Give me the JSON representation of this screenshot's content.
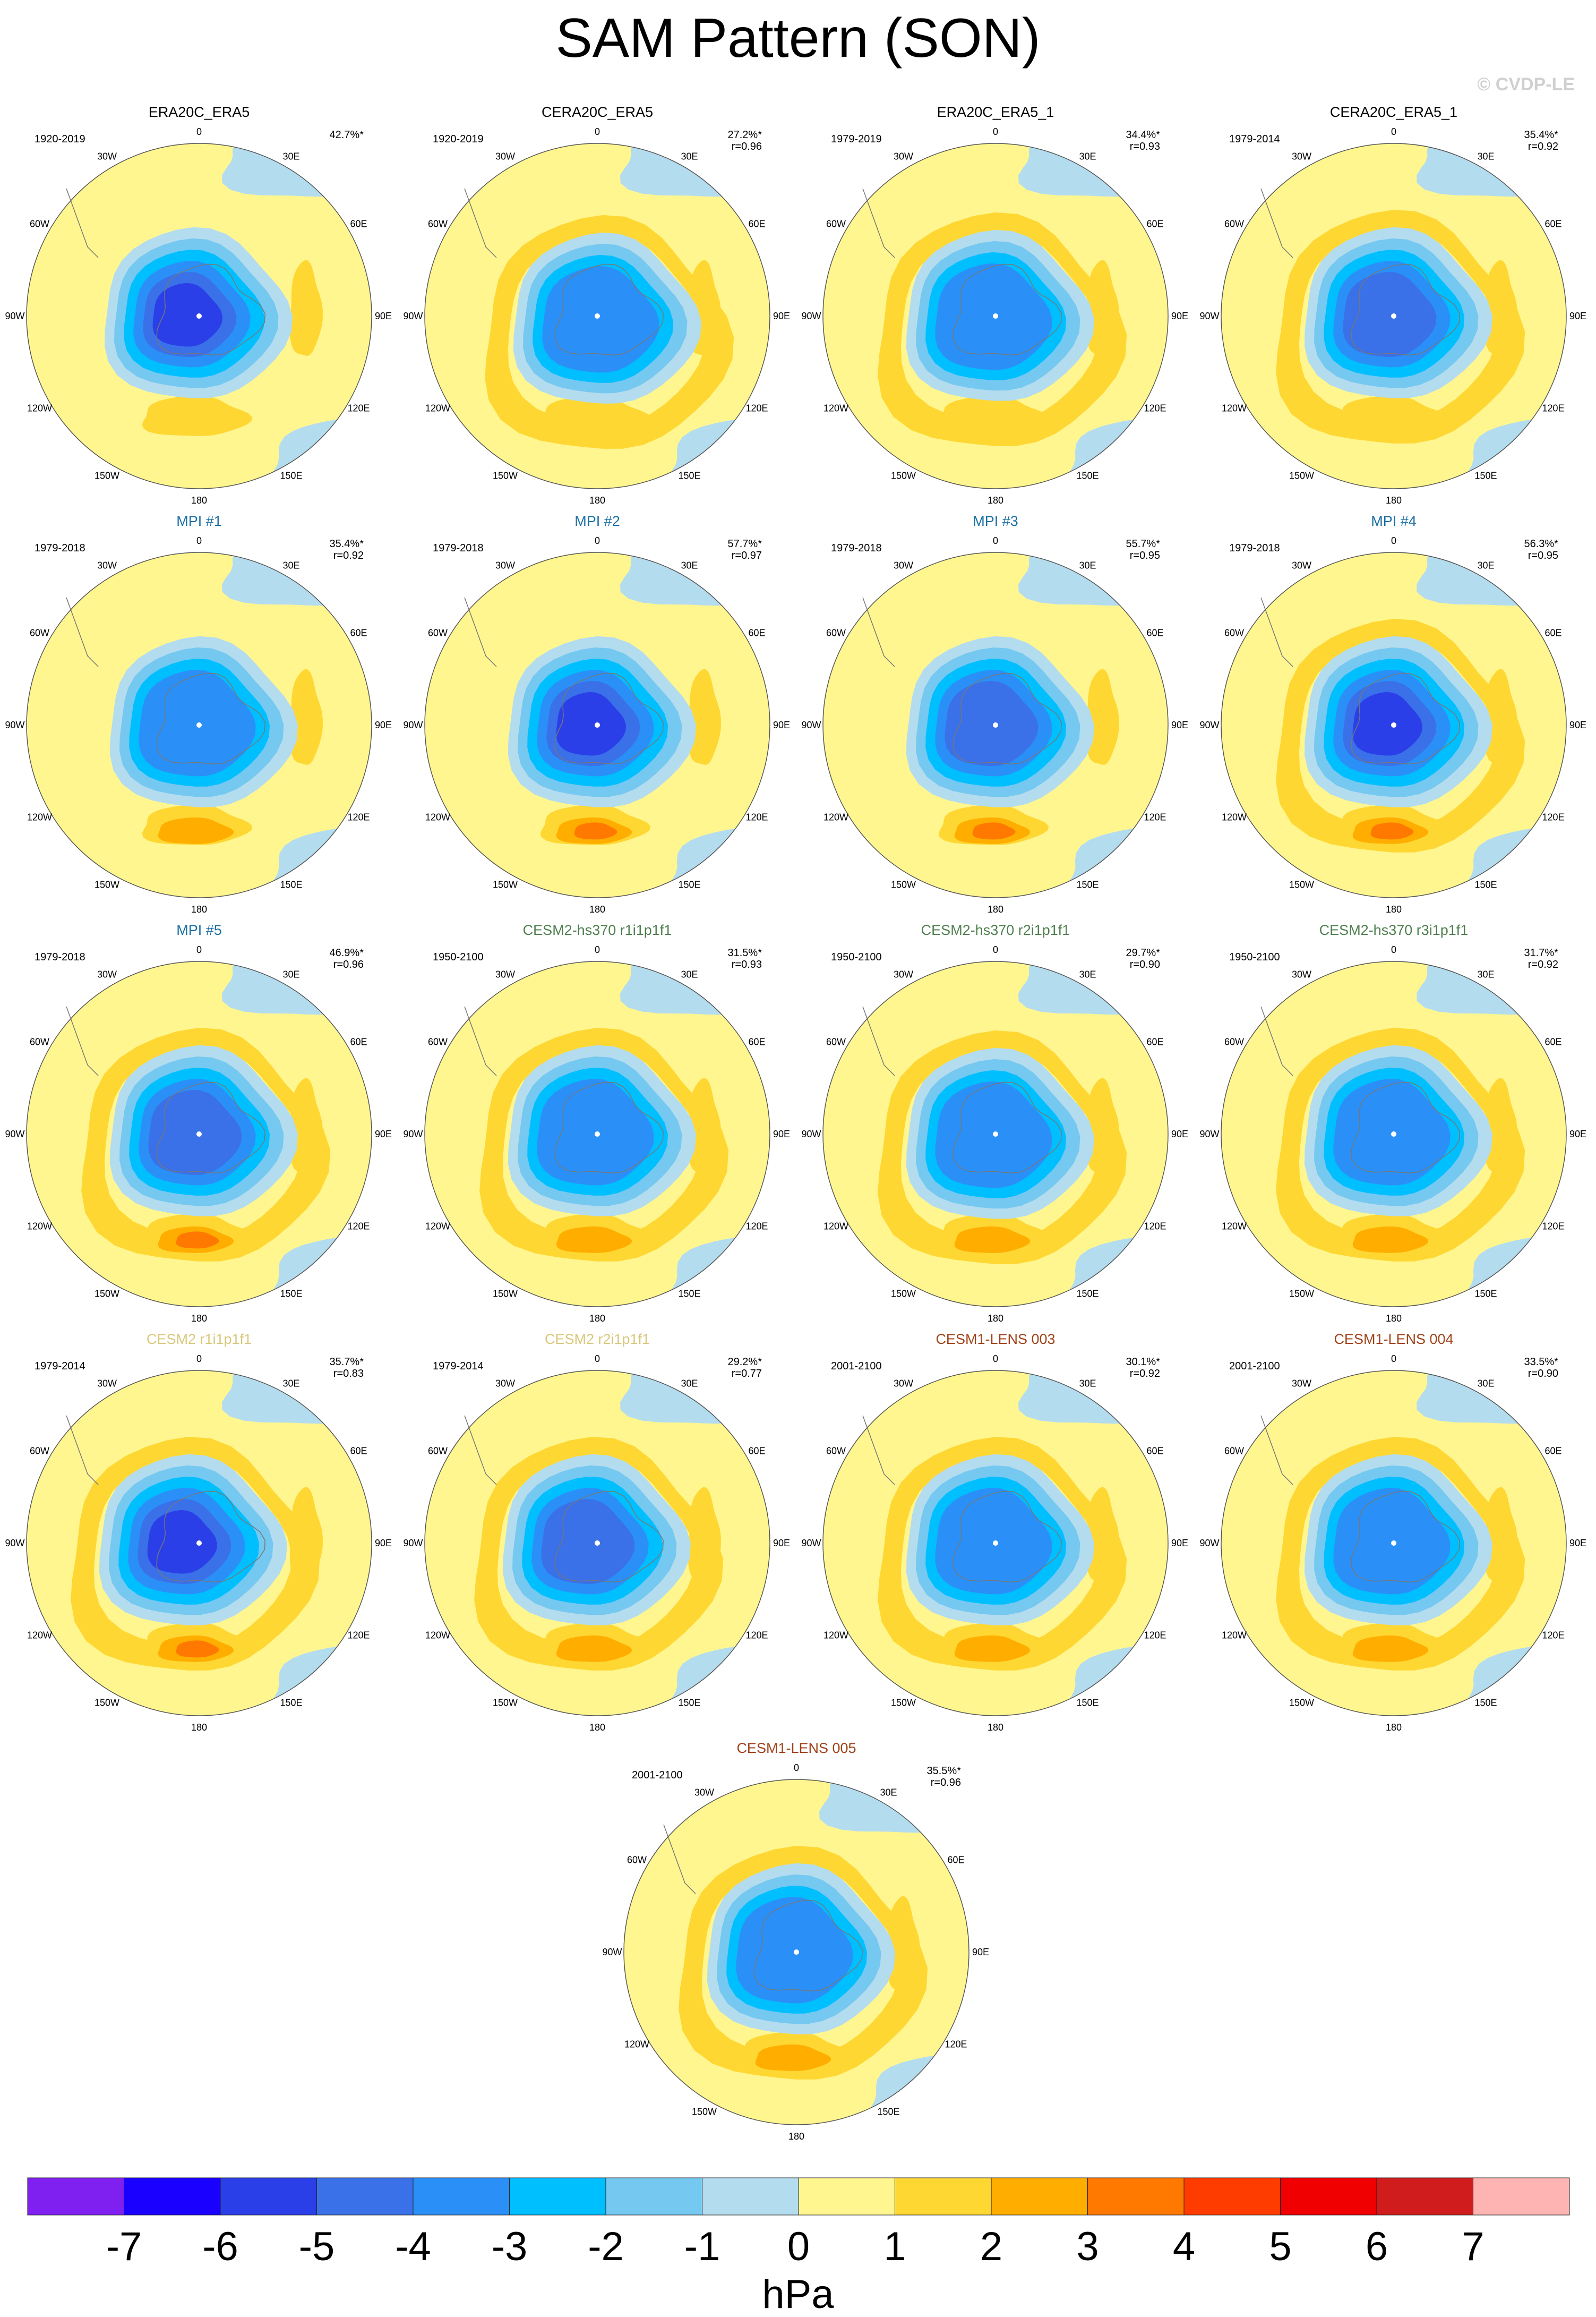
{
  "title": "SAM Pattern (SON)",
  "watermark": "© CVDP-LE",
  "lon_labels": [
    "0",
    "30E",
    "60E",
    "90E",
    "120E",
    "150E",
    "180",
    "150W",
    "120W",
    "90W",
    "60W",
    "30W"
  ],
  "panels": [
    {
      "title": "ERA20C_ERA5",
      "title_color": "#000000",
      "years": "1920-2019",
      "pct": "42.7%*",
      "r": ""
    },
    {
      "title": "CERA20C_ERA5",
      "title_color": "#000000",
      "years": "1920-2019",
      "pct": "27.2%*",
      "r": "r=0.96"
    },
    {
      "title": "ERA20C_ERA5_1",
      "title_color": "#000000",
      "years": "1979-2019",
      "pct": "34.4%*",
      "r": "r=0.93"
    },
    {
      "title": "CERA20C_ERA5_1",
      "title_color": "#000000",
      "years": "1979-2014",
      "pct": "35.4%*",
      "r": "r=0.92"
    },
    {
      "title": "MPI #1",
      "title_color": "#1a6fa3",
      "years": "1979-2018",
      "pct": "35.4%*",
      "r": "r=0.92"
    },
    {
      "title": "MPI #2",
      "title_color": "#1a6fa3",
      "years": "1979-2018",
      "pct": "57.7%*",
      "r": "r=0.97"
    },
    {
      "title": "MPI #3",
      "title_color": "#1a6fa3",
      "years": "1979-2018",
      "pct": "55.7%*",
      "r": "r=0.95"
    },
    {
      "title": "MPI #4",
      "title_color": "#1a6fa3",
      "years": "1979-2018",
      "pct": "56.3%*",
      "r": "r=0.95"
    },
    {
      "title": "MPI #5",
      "title_color": "#1a6fa3",
      "years": "1979-2018",
      "pct": "46.9%*",
      "r": "r=0.96"
    },
    {
      "title": "CESM2-hs370 r1i1p1f1",
      "title_color": "#4f7f4f",
      "years": "1950-2100",
      "pct": "31.5%*",
      "r": "r=0.93"
    },
    {
      "title": "CESM2-hs370 r2i1p1f1",
      "title_color": "#4f7f4f",
      "years": "1950-2100",
      "pct": "29.7%*",
      "r": "r=0.90"
    },
    {
      "title": "CESM2-hs370 r3i1p1f1",
      "title_color": "#4f7f4f",
      "years": "1950-2100",
      "pct": "31.7%*",
      "r": "r=0.92"
    },
    {
      "title": "CESM2 r1i1p1f1",
      "title_color": "#d8c87a",
      "years": "1979-2014",
      "pct": "35.7%*",
      "r": "r=0.83"
    },
    {
      "title": "CESM2 r2i1p1f1",
      "title_color": "#d8c87a",
      "years": "1979-2014",
      "pct": "29.2%*",
      "r": "r=0.77"
    },
    {
      "title": "CESM1-LENS 003",
      "title_color": "#a0421a",
      "years": "2001-2100",
      "pct": "30.1%*",
      "r": "r=0.92"
    },
    {
      "title": "CESM1-LENS 004",
      "title_color": "#a0421a",
      "years": "2001-2100",
      "pct": "33.5%*",
      "r": "r=0.90"
    },
    {
      "title": "CESM1-LENS 005",
      "title_color": "#a0421a",
      "years": "2001-2100",
      "pct": "35.5%*",
      "r": "r=0.96"
    }
  ],
  "colorbar": {
    "units": "hPa",
    "colors": [
      "#8020f0",
      "#1a00ff",
      "#2a3fe8",
      "#3a70e8",
      "#2a90f8",
      "#00bfff",
      "#75c8f0",
      "#b4dcef",
      "#fff68f",
      "#ffd733",
      "#ffae00",
      "#ff7800",
      "#ff3c00",
      "#f00000",
      "#d01c1c",
      "#ffb4b4"
    ],
    "labels": [
      "-7",
      "-6",
      "-5",
      "-4",
      "-3",
      "-2",
      "-1",
      "0",
      "1",
      "2",
      "3",
      "4",
      "5",
      "6",
      "7"
    ]
  },
  "field_colors": {
    "ocean_base": "#fff68f",
    "neg1": "#b4dcef",
    "neg2": "#75c8f0",
    "neg3": "#00bfff",
    "neg4": "#2a90f8",
    "neg5": "#3a70e8",
    "neg6": "#2a3fe8",
    "pos1": "#ffd733",
    "pos2": "#ffae00",
    "pos3": "#ff7800"
  }
}
